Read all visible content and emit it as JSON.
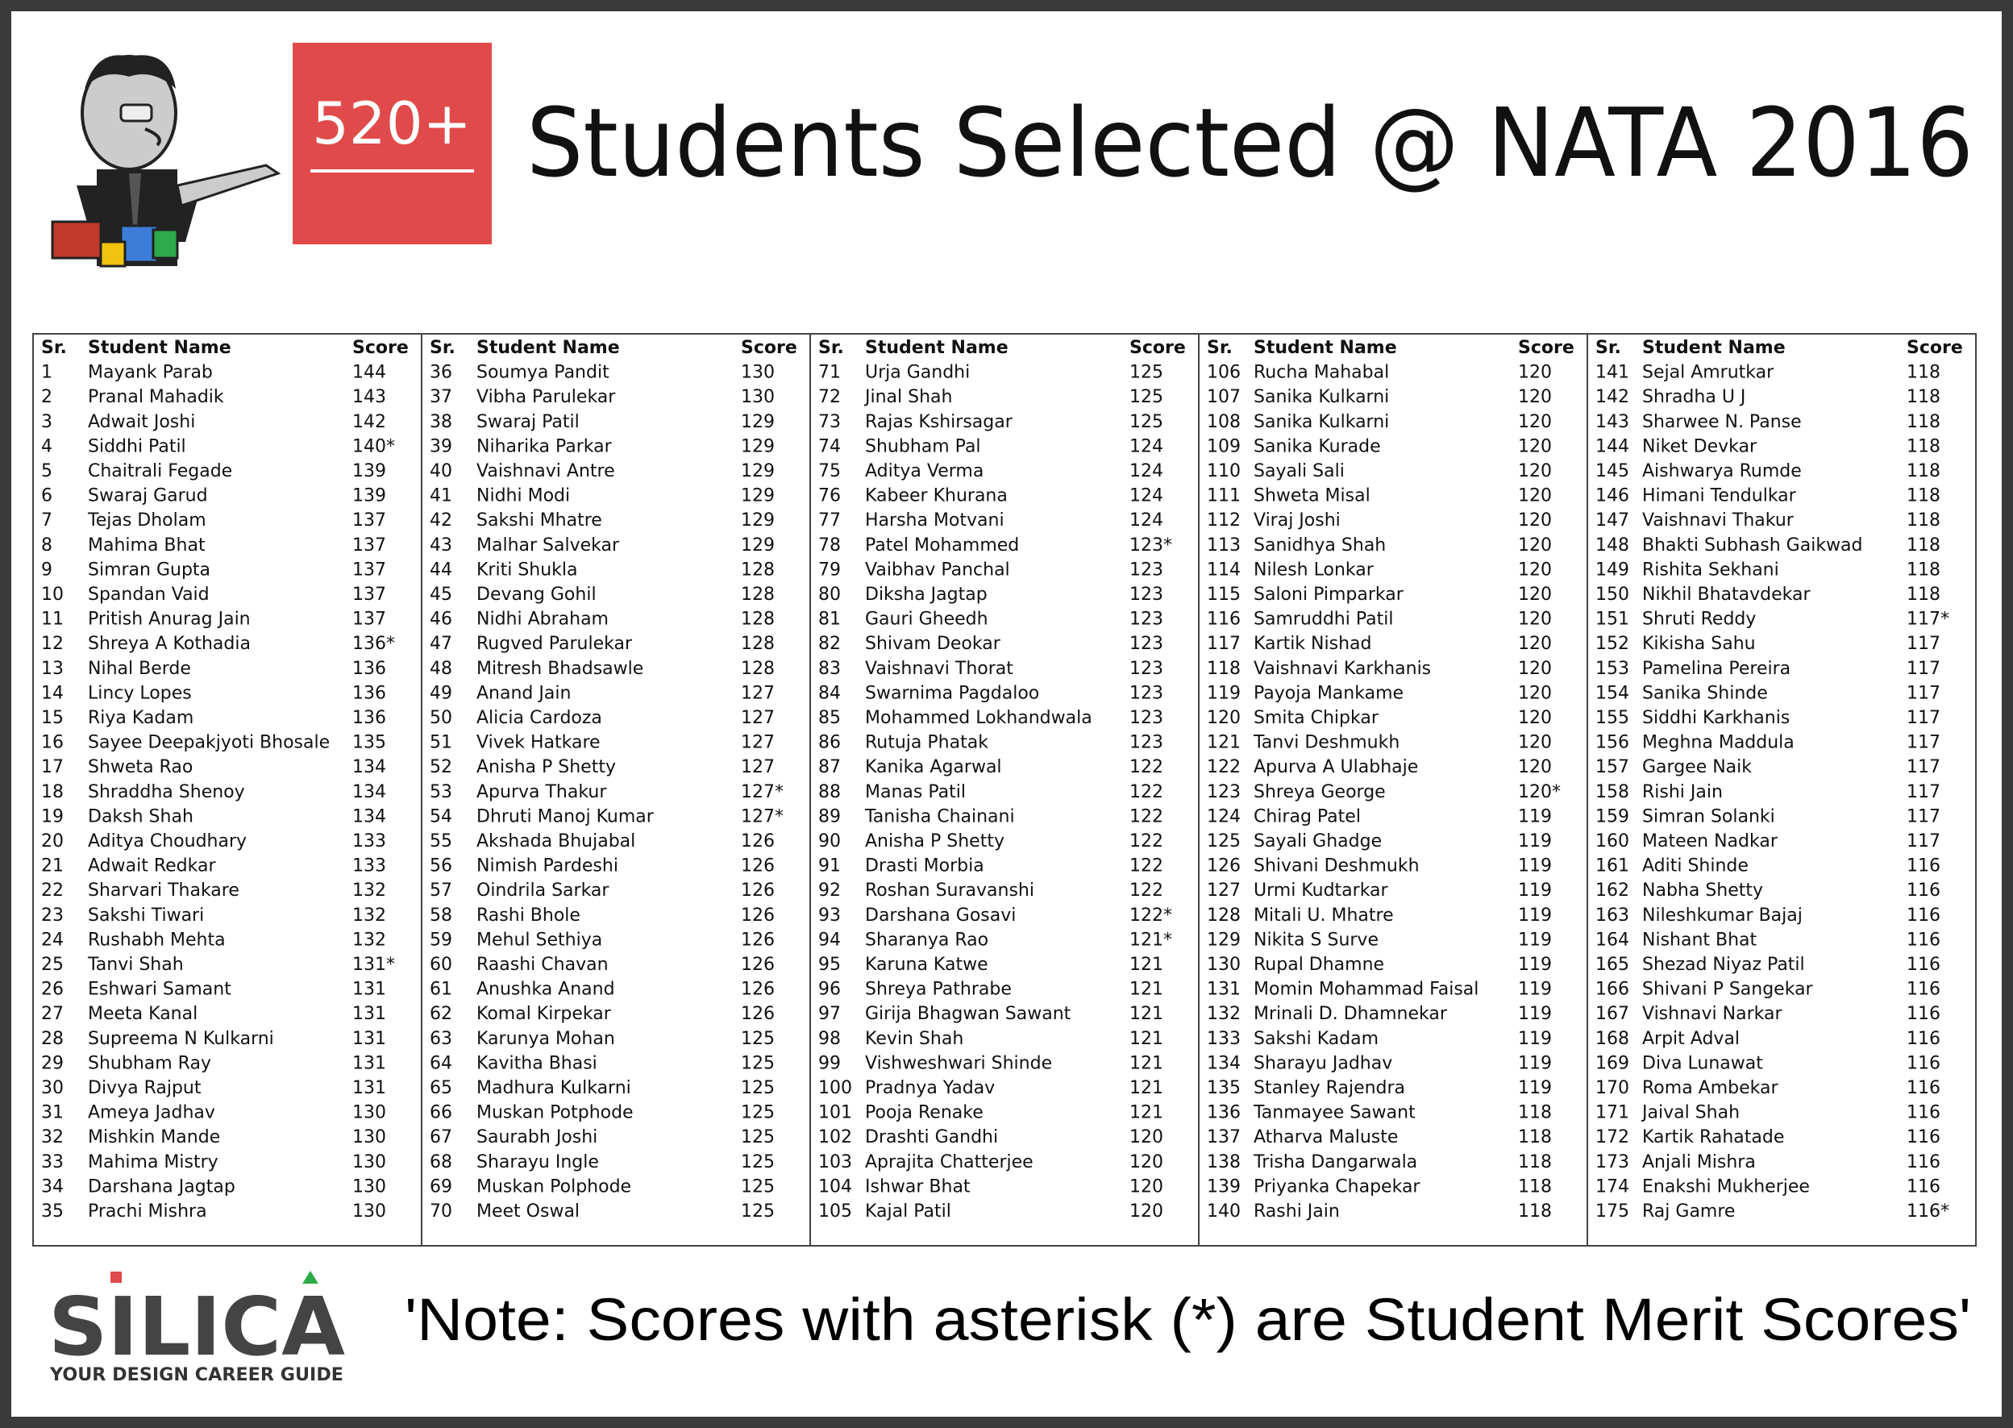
{
  "header": {
    "badge": "520+",
    "title": "Students Selected @ NATA 2016"
  },
  "table": {
    "columns": [
      "Sr.",
      "Student Name",
      "Score"
    ],
    "rows": [
      [
        1,
        "Mayank Parab",
        144
      ],
      [
        2,
        "Pranal Mahadik",
        143
      ],
      [
        3,
        "Adwait Joshi",
        142
      ],
      [
        4,
        "Siddhi Patil",
        "140*"
      ],
      [
        5,
        "Chaitrali Fegade",
        139
      ],
      [
        6,
        "Swaraj Garud",
        139
      ],
      [
        7,
        "Tejas Dholam",
        137
      ],
      [
        8,
        "Mahima Bhat",
        137
      ],
      [
        9,
        "Simran Gupta",
        137
      ],
      [
        10,
        "Spandan Vaid",
        137
      ],
      [
        11,
        "Pritish Anurag Jain",
        137
      ],
      [
        12,
        "Shreya A Kothadia",
        "136*"
      ],
      [
        13,
        "Nihal Berde",
        136
      ],
      [
        14,
        "Lincy Lopes",
        136
      ],
      [
        15,
        "Riya Kadam",
        136
      ],
      [
        16,
        "Sayee Deepakjyoti Bhosale",
        135
      ],
      [
        17,
        "Shweta Rao",
        134
      ],
      [
        18,
        "Shraddha Shenoy",
        134
      ],
      [
        19,
        "Daksh Shah",
        134
      ],
      [
        20,
        "Aditya Choudhary",
        133
      ],
      [
        21,
        "Adwait Redkar",
        133
      ],
      [
        22,
        "Sharvari Thakare",
        132
      ],
      [
        23,
        "Sakshi Tiwari",
        132
      ],
      [
        24,
        "Rushabh Mehta",
        132
      ],
      [
        25,
        "Tanvi Shah",
        "131*"
      ],
      [
        26,
        "Eshwari Samant",
        131
      ],
      [
        27,
        "Meeta Kanal",
        131
      ],
      [
        28,
        "Supreema N Kulkarni",
        131
      ],
      [
        29,
        "Shubham Ray",
        131
      ],
      [
        30,
        "Divya Rajput",
        131
      ],
      [
        31,
        "Ameya Jadhav",
        130
      ],
      [
        32,
        "Mishkin Mande",
        130
      ],
      [
        33,
        "Mahima Mistry",
        130
      ],
      [
        34,
        "Darshana Jagtap",
        130
      ],
      [
        35,
        "Prachi Mishra",
        130
      ],
      [
        36,
        "Soumya Pandit",
        130
      ],
      [
        37,
        "Vibha Parulekar",
        130
      ],
      [
        38,
        "Swaraj Patil",
        129
      ],
      [
        39,
        "Niharika Parkar",
        129
      ],
      [
        40,
        "Vaishnavi Antre",
        129
      ],
      [
        41,
        "Nidhi Modi",
        129
      ],
      [
        42,
        "Sakshi Mhatre",
        129
      ],
      [
        43,
        "Malhar Salvekar",
        129
      ],
      [
        44,
        "Kriti Shukla",
        128
      ],
      [
        45,
        "Devang Gohil",
        128
      ],
      [
        46,
        "Nidhi Abraham",
        128
      ],
      [
        47,
        "Rugved Parulekar",
        128
      ],
      [
        48,
        "Mitresh Bhadsawle",
        128
      ],
      [
        49,
        "Anand Jain",
        127
      ],
      [
        50,
        "Alicia Cardoza",
        127
      ],
      [
        51,
        "Vivek Hatkare",
        127
      ],
      [
        52,
        "Anisha P Shetty",
        127
      ],
      [
        53,
        "Apurva Thakur",
        "127*"
      ],
      [
        54,
        "Dhruti Manoj Kumar",
        "127*"
      ],
      [
        55,
        "Akshada Bhujabal",
        126
      ],
      [
        56,
        "Nimish Pardeshi",
        126
      ],
      [
        57,
        "Oindrila Sarkar",
        126
      ],
      [
        58,
        "Rashi Bhole",
        126
      ],
      [
        59,
        "Mehul Sethiya",
        126
      ],
      [
        60,
        "Raashi Chavan",
        126
      ],
      [
        61,
        "Anushka Anand",
        126
      ],
      [
        62,
        "Komal Kirpekar",
        126
      ],
      [
        63,
        "Karunya Mohan",
        125
      ],
      [
        64,
        "Kavitha Bhasi",
        125
      ],
      [
        65,
        "Madhura Kulkarni",
        125
      ],
      [
        66,
        "Muskan Potphode",
        125
      ],
      [
        67,
        "Saurabh Joshi",
        125
      ],
      [
        68,
        "Sharayu Ingle",
        125
      ],
      [
        69,
        "Muskan Polphode",
        125
      ],
      [
        70,
        "Meet Oswal",
        125
      ],
      [
        71,
        "Urja Gandhi",
        125
      ],
      [
        72,
        "Jinal Shah",
        125
      ],
      [
        73,
        "Rajas Kshirsagar",
        125
      ],
      [
        74,
        "Shubham Pal",
        124
      ],
      [
        75,
        "Aditya Verma",
        124
      ],
      [
        76,
        "Kabeer Khurana",
        124
      ],
      [
        77,
        "Harsha Motvani",
        124
      ],
      [
        78,
        "Patel Mohammed",
        "123*"
      ],
      [
        79,
        "Vaibhav Panchal",
        123
      ],
      [
        80,
        "Diksha Jagtap",
        123
      ],
      [
        81,
        "Gauri Gheedh",
        123
      ],
      [
        82,
        "Shivam Deokar",
        123
      ],
      [
        83,
        "Vaishnavi Thorat",
        123
      ],
      [
        84,
        "Swarnima Pagdaloo",
        123
      ],
      [
        85,
        "Mohammed Lokhandwala",
        123
      ],
      [
        86,
        "Rutuja Phatak",
        123
      ],
      [
        87,
        "Kanika Agarwal",
        122
      ],
      [
        88,
        "Manas Patil",
        122
      ],
      [
        89,
        "Tanisha Chainani",
        122
      ],
      [
        90,
        "Anisha P Shetty",
        122
      ],
      [
        91,
        "Drasti Morbia",
        122
      ],
      [
        92,
        "Roshan Suravanshi",
        122
      ],
      [
        93,
        "Darshana Gosavi",
        "122*"
      ],
      [
        94,
        "Sharanya Rao",
        "121*"
      ],
      [
        95,
        "Karuna Katwe",
        121
      ],
      [
        96,
        "Shreya Pathrabe",
        121
      ],
      [
        97,
        "Girija Bhagwan Sawant",
        121
      ],
      [
        98,
        "Kevin Shah",
        121
      ],
      [
        99,
        "Vishweshwari Shinde",
        121
      ],
      [
        100,
        "Pradnya Yadav",
        121
      ],
      [
        101,
        "Pooja Renake",
        121
      ],
      [
        102,
        "Drashti Gandhi",
        120
      ],
      [
        103,
        "Aprajita Chatterjee",
        120
      ],
      [
        104,
        "Ishwar Bhat",
        120
      ],
      [
        105,
        "Kajal Patil",
        120
      ],
      [
        106,
        "Rucha Mahabal",
        120
      ],
      [
        107,
        "Sanika Kulkarni",
        120
      ],
      [
        108,
        "Sanika Kulkarni",
        120
      ],
      [
        109,
        "Sanika Kurade",
        120
      ],
      [
        110,
        "Sayali Sali",
        120
      ],
      [
        111,
        "Shweta Misal",
        120
      ],
      [
        112,
        "Viraj Joshi",
        120
      ],
      [
        113,
        "Sanidhya Shah",
        120
      ],
      [
        114,
        "Nilesh Lonkar",
        120
      ],
      [
        115,
        "Saloni Pimparkar",
        120
      ],
      [
        116,
        "Samruddhi Patil",
        120
      ],
      [
        117,
        "Kartik Nishad",
        120
      ],
      [
        118,
        "Vaishnavi Karkhanis",
        120
      ],
      [
        119,
        "Payoja Mankame",
        120
      ],
      [
        120,
        "Smita Chipkar",
        120
      ],
      [
        121,
        "Tanvi Deshmukh",
        120
      ],
      [
        122,
        "Apurva A Ulabhaje",
        120
      ],
      [
        123,
        "Shreya George",
        "120*"
      ],
      [
        124,
        "Chirag Patel",
        119
      ],
      [
        125,
        "Sayali Ghadge",
        119
      ],
      [
        126,
        "Shivani Deshmukh",
        119
      ],
      [
        127,
        "Urmi Kudtarkar",
        119
      ],
      [
        128,
        "Mitali U. Mhatre",
        119
      ],
      [
        129,
        "Nikita S Surve",
        119
      ],
      [
        130,
        "Rupal Dhamne",
        119
      ],
      [
        131,
        "Momin Mohammad Faisal",
        119
      ],
      [
        132,
        "Mrinali D. Dhamnekar",
        119
      ],
      [
        133,
        "Sakshi Kadam",
        119
      ],
      [
        134,
        "Sharayu Jadhav",
        119
      ],
      [
        135,
        "Stanley Rajendra",
        119
      ],
      [
        136,
        "Tanmayee Sawant",
        118
      ],
      [
        137,
        "Atharva Maluste",
        118
      ],
      [
        138,
        "Trisha Dangarwala",
        118
      ],
      [
        139,
        "Priyanka Chapekar",
        118
      ],
      [
        140,
        "Rashi Jain",
        118
      ],
      [
        141,
        "Sejal Amrutkar",
        118
      ],
      [
        142,
        "Shradha U J",
        118
      ],
      [
        143,
        "Sharwee N. Panse",
        118
      ],
      [
        144,
        "Niket Devkar",
        118
      ],
      [
        145,
        "Aishwarya Rumde",
        118
      ],
      [
        146,
        "Himani Tendulkar",
        118
      ],
      [
        147,
        "Vaishnavi Thakur",
        118
      ],
      [
        148,
        "Bhakti Subhash Gaikwad",
        118
      ],
      [
        149,
        "Rishita Sekhani",
        118
      ],
      [
        150,
        "Nikhil Bhatavdekar",
        118
      ],
      [
        151,
        "Shruti Reddy",
        "117*"
      ],
      [
        152,
        "Kikisha Sahu",
        117
      ],
      [
        153,
        "Pamelina Pereira",
        117
      ],
      [
        154,
        "Sanika Shinde",
        117
      ],
      [
        155,
        "Siddhi Karkhanis",
        117
      ],
      [
        156,
        "Meghna Maddula",
        117
      ],
      [
        157,
        "Gargee Naik",
        117
      ],
      [
        158,
        "Rishi Jain",
        117
      ],
      [
        159,
        "Simran Solanki",
        117
      ],
      [
        160,
        "Mateen Nadkar",
        117
      ],
      [
        161,
        "Aditi Shinde",
        116
      ],
      [
        162,
        "Nabha Shetty",
        116
      ],
      [
        163,
        "Nileshkumar Bajaj",
        116
      ],
      [
        164,
        "Nishant Bhat",
        116
      ],
      [
        165,
        "Shezad Niyaz Patil",
        116
      ],
      [
        166,
        "Shivani P Sangekar",
        116
      ],
      [
        167,
        "Vishnavi Narkar",
        116
      ],
      [
        168,
        "Arpit Adval",
        116
      ],
      [
        169,
        "Diva Lunawat",
        116
      ],
      [
        170,
        "Roma Ambekar",
        116
      ],
      [
        171,
        "Jaival Shah",
        116
      ],
      [
        172,
        "Kartik Rahatade",
        116
      ],
      [
        173,
        "Anjali Mishra",
        116
      ],
      [
        174,
        "Enakshi Mukherjee",
        116
      ],
      [
        175,
        "Raj Gamre",
        "116*"
      ]
    ]
  },
  "footer": {
    "logo": "SILICA",
    "tagline": "YOUR DESIGN CAREER GUIDE",
    "note": "'Note: Scores with asterisk (*) are Student Merit Scores'"
  }
}
